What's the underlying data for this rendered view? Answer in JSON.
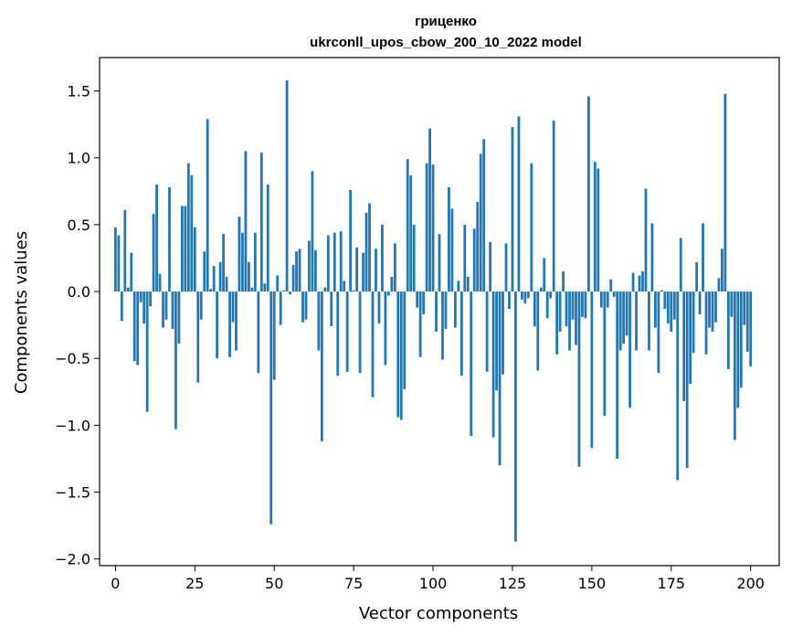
{
  "chart_data": {
    "type": "bar",
    "title_line1": "гриценко",
    "title_line2": "ukrconll_upos_cbow_200_10_2022 model",
    "xlabel": "Vector components",
    "ylabel": "Components values",
    "xlim": [
      -5,
      209
    ],
    "ylim": [
      -2.05,
      1.75
    ],
    "xticks": [
      0,
      25,
      50,
      75,
      100,
      125,
      150,
      175,
      200
    ],
    "yticks": [
      -2.0,
      -1.5,
      -1.0,
      -0.5,
      0.0,
      0.5,
      1.0,
      1.5
    ],
    "ytick_labels": [
      "−2.0",
      "−1.5",
      "−1.0",
      "−0.5",
      "0.0",
      "0.5",
      "1.0",
      "1.5"
    ],
    "grid": false,
    "bar_color": "#1f77b4",
    "values": [
      0.48,
      0.42,
      -0.22,
      0.61,
      0.03,
      0.29,
      -0.52,
      -0.55,
      -0.08,
      -0.24,
      -0.9,
      -0.11,
      0.58,
      0.8,
      0.13,
      -0.27,
      -0.21,
      0.78,
      -0.28,
      -1.03,
      -0.39,
      0.64,
      0.64,
      0.96,
      0.87,
      0.48,
      -0.68,
      -0.21,
      0.3,
      1.29,
      0.02,
      0.19,
      -0.5,
      0.22,
      0.43,
      0.11,
      -0.49,
      -0.23,
      -0.44,
      0.56,
      0.44,
      1.05,
      0.22,
      0.03,
      0.44,
      -0.61,
      1.04,
      0.06,
      0.8,
      -1.74,
      -0.66,
      0.12,
      -0.25,
      0.01,
      1.58,
      -0.02,
      0.2,
      0.3,
      0.32,
      -0.23,
      -0.21,
      0.38,
      0.9,
      0.31,
      -0.44,
      -1.12,
      0.03,
      0.42,
      -0.26,
      0.44,
      -0.63,
      0.45,
      0.08,
      -0.6,
      0.76,
      0.01,
      0.33,
      -0.61,
      0.29,
      0.59,
      0.66,
      -0.79,
      0.32,
      -0.24,
      0.5,
      -0.55,
      -0.03,
      0.11,
      0.36,
      -0.94,
      -0.96,
      -0.73,
      0.99,
      0.87,
      0.5,
      -0.12,
      -0.49,
      -0.17,
      0.96,
      1.22,
      0.95,
      -0.3,
      0.43,
      -0.51,
      -0.28,
      0.78,
      0.62,
      -0.27,
      0.08,
      -0.63,
      0.5,
      0.11,
      -1.08,
      0.47,
      0.67,
      1.03,
      1.14,
      -0.6,
      0.37,
      -1.09,
      -0.74,
      -1.3,
      -0.62,
      0.36,
      -0.13,
      1.23,
      -1.87,
      1.31,
      -0.06,
      -0.09,
      -0.05,
      0.96,
      -0.26,
      -0.59,
      0.03,
      0.25,
      -0.2,
      -0.05,
      1.28,
      -0.47,
      -0.3,
      0.15,
      -0.26,
      -0.44,
      -0.21,
      -0.4,
      -1.31,
      -0.19,
      -0.2,
      1.46,
      -1.17,
      0.97,
      0.92,
      -0.12,
      -0.93,
      -0.12,
      0.09,
      -0.04,
      -1.25,
      -0.44,
      -0.39,
      -0.33,
      -0.87,
      0.14,
      -0.44,
      0.12,
      0.15,
      0.77,
      -0.44,
      0.51,
      -0.27,
      -0.61,
      0.01,
      -0.13,
      -0.24,
      -0.3,
      -0.21,
      -1.41,
      0.4,
      -0.82,
      -1.32,
      -0.69,
      -0.46,
      0.22,
      -0.17,
      0.51,
      -0.47,
      -0.27,
      -0.3,
      -0.23,
      0.1,
      0.32,
      1.48,
      -0.58,
      -0.19,
      -1.11,
      -0.87,
      -0.72,
      -0.25,
      -0.45,
      -0.56
    ]
  }
}
